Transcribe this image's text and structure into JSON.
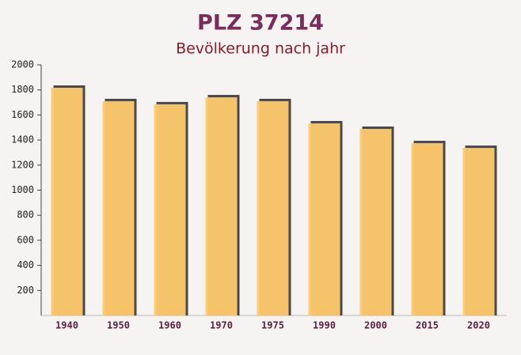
{
  "chart_data": {
    "type": "bar",
    "title": "PLZ 37214",
    "subtitle": "Bevölkerung nach jahr",
    "categories": [
      "1940",
      "1950",
      "1960",
      "1970",
      "1975",
      "1990",
      "2000",
      "2015",
      "2020"
    ],
    "values": [
      1817,
      1710,
      1685,
      1741,
      1710,
      1533,
      1489,
      1375,
      1337
    ],
    "color": "#fdc96b",
    "ylim": [
      0,
      2000
    ],
    "yticks": [
      200,
      400,
      600,
      800,
      1000,
      1200,
      1400,
      1600,
      1800,
      2000
    ]
  }
}
